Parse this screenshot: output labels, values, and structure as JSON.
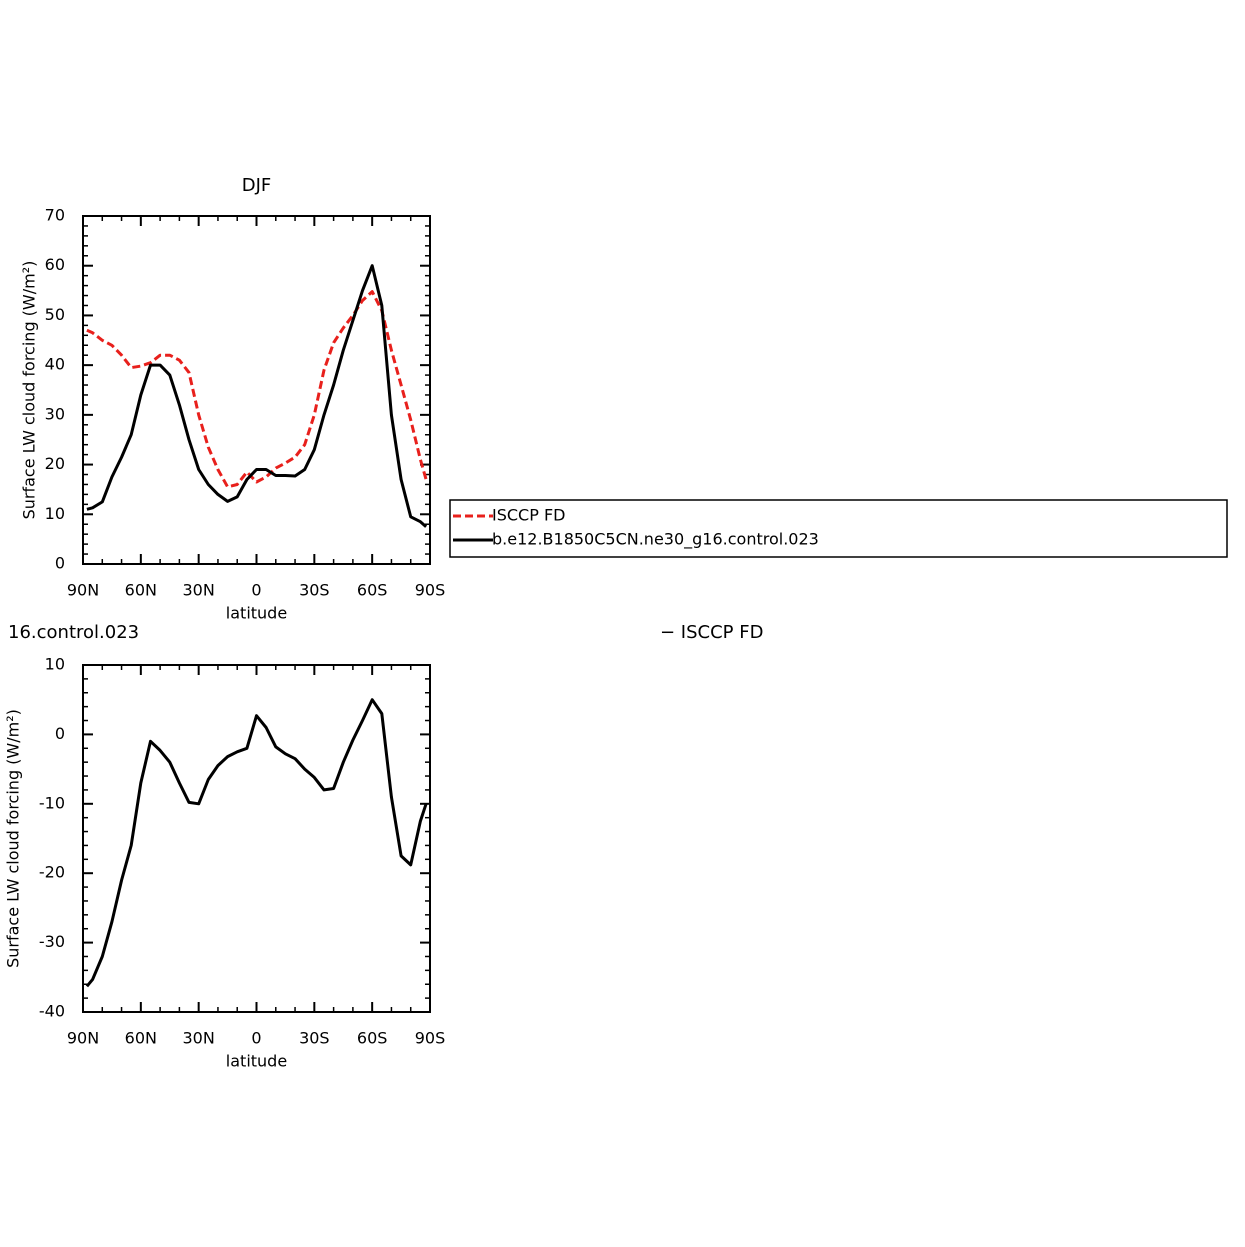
{
  "chart_data": [
    {
      "type": "line",
      "title": "DJF",
      "xlabel": "latitude",
      "ylabel": "Surface LW cloud forcing (W/m²)",
      "x": [
        88,
        85,
        80,
        75,
        70,
        65,
        60,
        55,
        50,
        45,
        40,
        35,
        30,
        25,
        20,
        15,
        10,
        5,
        0,
        -5,
        -10,
        -15,
        -20,
        -25,
        -30,
        -35,
        -40,
        -45,
        -50,
        -55,
        -60,
        -65,
        -70,
        -75,
        -80,
        -85,
        -88
      ],
      "series": [
        {
          "name": "ISCCP FD",
          "color": "#e8201c",
          "dash": true,
          "values": [
            47,
            46.5,
            45,
            44,
            42,
            39.5,
            39.8,
            40.5,
            42,
            42,
            41,
            38.5,
            30,
            23.5,
            19,
            15.5,
            16,
            18.5,
            16.5,
            17.5,
            19.3,
            20.3,
            21.5,
            24,
            30,
            39,
            44.5,
            47.5,
            50,
            53,
            54.8,
            51,
            43,
            36,
            29,
            21,
            17
          ]
        },
        {
          "name": "b.e12.B1850C5CN.ne30_g16.control.023",
          "color": "#000000",
          "dash": false,
          "values": [
            11,
            11.3,
            12.5,
            17.5,
            21.5,
            26,
            34,
            40,
            40,
            38,
            32,
            25,
            19,
            16,
            14,
            12.6,
            13.5,
            17,
            19,
            19,
            17.8,
            17.8,
            17.7,
            19,
            23,
            30,
            36,
            43,
            49,
            55,
            60,
            52,
            30,
            17,
            9.5,
            8.5,
            7.5
          ]
        }
      ],
      "xlim": [
        90,
        -90
      ],
      "xticks": [
        {
          "value": 90,
          "label": "90N"
        },
        {
          "value": 60,
          "label": "60N"
        },
        {
          "value": 30,
          "label": "30N"
        },
        0,
        {
          "value": -30,
          "label": "30S"
        },
        {
          "value": -60,
          "label": "60S"
        },
        {
          "value": -90,
          "label": "90S"
        }
      ],
      "ylim": [
        0,
        70
      ],
      "yticks": [
        0,
        10,
        20,
        30,
        40,
        50,
        60,
        70
      ]
    },
    {
      "type": "line",
      "title_parts": [
        "16.control.023",
        "− ISCCP FD"
      ],
      "xlabel": "latitude",
      "ylabel": "Surface LW cloud forcing (W/m²)",
      "x": [
        88,
        85,
        80,
        75,
        70,
        65,
        60,
        55,
        50,
        45,
        40,
        35,
        30,
        25,
        20,
        15,
        10,
        5,
        0,
        -5,
        -10,
        -15,
        -20,
        -25,
        -30,
        -35,
        -40,
        -45,
        -50,
        -55,
        -60,
        -65,
        -70,
        -75,
        -80,
        -85,
        -88
      ],
      "series": [
        {
          "color": "#000000",
          "dash": false,
          "values": [
            -36.3,
            -35.3,
            -32,
            -27,
            -21,
            -16,
            -7,
            -1,
            -2.3,
            -4,
            -7,
            -9.8,
            -10,
            -6.5,
            -4.5,
            -3.2,
            -2.5,
            -2,
            2.7,
            1,
            -1.8,
            -2.8,
            -3.5,
            -5,
            -6.2,
            -8,
            -7.8,
            -4,
            -0.8,
            2,
            5,
            3,
            -9,
            -17.5,
            -18.8,
            -12.5,
            -10
          ]
        }
      ],
      "xlim": [
        90,
        -90
      ],
      "xticks": [
        {
          "value": 90,
          "label": "90N"
        },
        {
          "value": 60,
          "label": "60N"
        },
        {
          "value": 30,
          "label": "30N"
        },
        0,
        {
          "value": -30,
          "label": "30S"
        },
        {
          "value": -60,
          "label": "60S"
        },
        {
          "value": -90,
          "label": "90S"
        }
      ],
      "ylim": [
        -40,
        10
      ],
      "yticks": [
        -40,
        -30,
        -20,
        -10,
        0,
        10
      ]
    }
  ]
}
